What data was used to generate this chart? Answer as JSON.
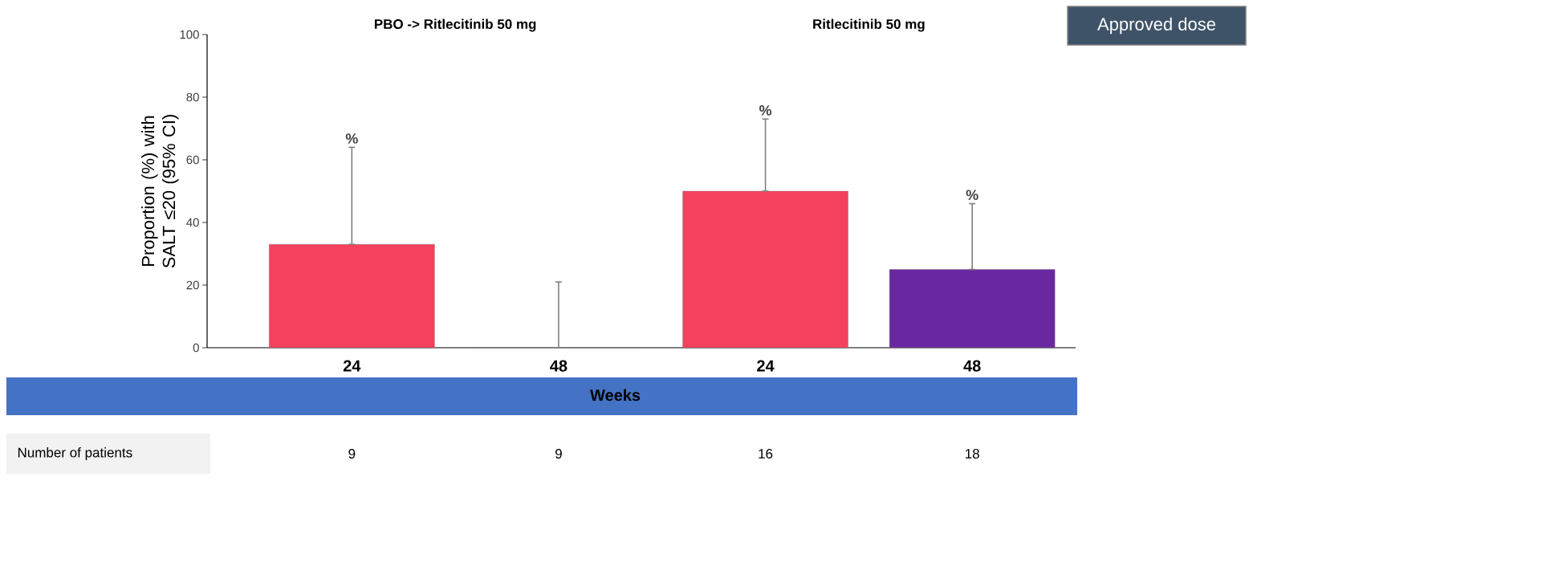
{
  "chart_data": {
    "type": "bar",
    "xlabel": "Weeks",
    "ylabel": "Proportion (%) with SALT ≤20 (95% CI)",
    "categories": [
      "24",
      "48",
      "24",
      "48"
    ],
    "values": [
      33,
      0,
      50,
      25
    ],
    "colors": [
      "#f5405e",
      "#f5405e",
      "#f5405e",
      "#6a28a0"
    ],
    "errors": [
      [
        33,
        64
      ],
      [
        0,
        21
      ],
      [
        50,
        73
      ],
      [
        25,
        46
      ]
    ],
    "ylim": [
      0,
      100
    ],
    "yticks": [
      0,
      20,
      40,
      60,
      80,
      100
    ],
    "annotations": [
      "PBO -> Ritlecitinib 50 mg",
      "Ritlecitinib 50 mg",
      "Approved dose",
      "Number of patients",
      "9",
      "9",
      "16",
      "18",
      {
        "text": "%",
        "y": 64
      },
      {
        "text": "%",
        "y": 73
      },
      {
        "text": "%",
        "y": 46
      }
    ]
  }
}
